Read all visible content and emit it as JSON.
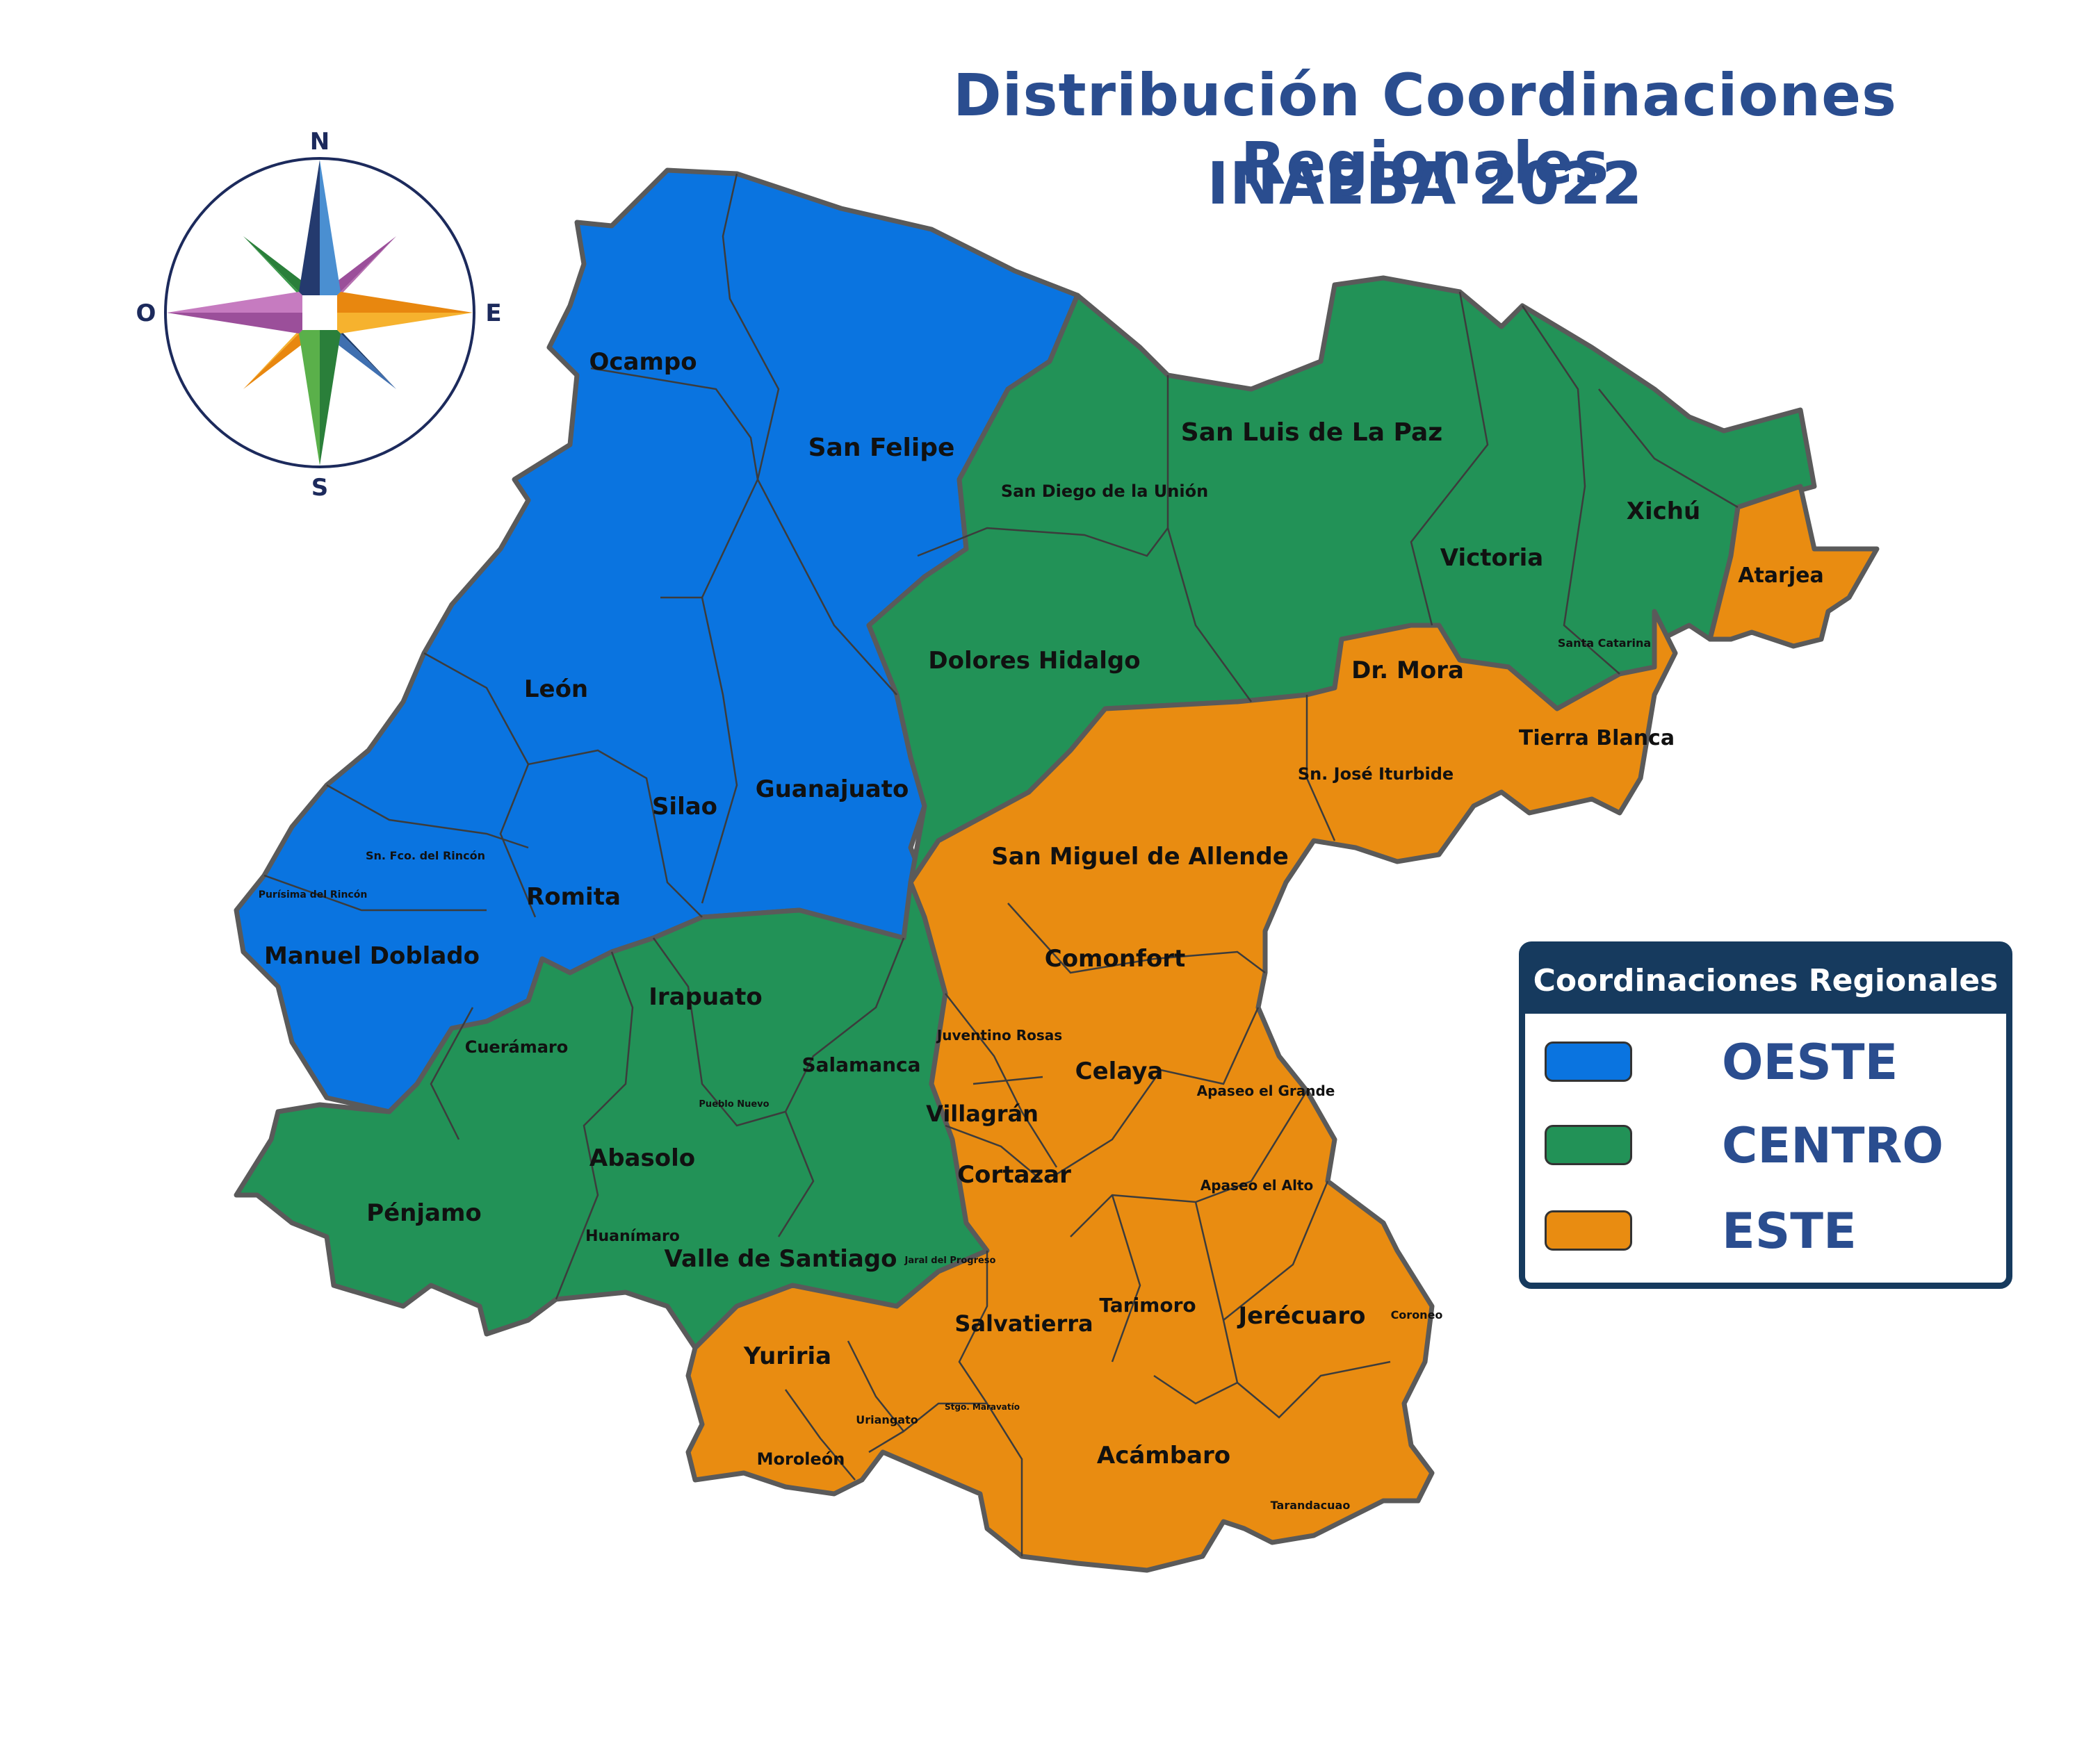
{
  "title": {
    "line1": "Distribución Coordinaciones Regionales",
    "line2": "INAEBA 2022"
  },
  "compass": {
    "n": "N",
    "s": "S",
    "e": "E",
    "w": "O",
    "icon": "compass-rose-icon"
  },
  "colors": {
    "oeste": "#0a74e0",
    "centro": "#229257",
    "este": "#e98c11",
    "border": "#5a5a5a"
  },
  "legend": {
    "title": "Coordinaciones Regionales",
    "items": [
      {
        "label": "OESTE",
        "color": "#0a74e0"
      },
      {
        "label": "CENTRO",
        "color": "#229257"
      },
      {
        "label": "ESTE",
        "color": "#e98c11"
      }
    ]
  },
  "regions": {
    "oeste": [
      {
        "name": "Ocampo"
      },
      {
        "name": "San Felipe"
      },
      {
        "name": "León"
      },
      {
        "name": "Silao"
      },
      {
        "name": "Guanajuato"
      },
      {
        "name": "Sn. Fco. del Rincón"
      },
      {
        "name": "Purísima del Rincón"
      },
      {
        "name": "Romita"
      },
      {
        "name": "Manuel Doblado"
      }
    ],
    "centro": [
      {
        "name": "San Luis de La Paz"
      },
      {
        "name": "San Diego de la Unión"
      },
      {
        "name": "Xichú"
      },
      {
        "name": "Victoria"
      },
      {
        "name": "Dolores Hidalgo"
      },
      {
        "name": "Irapuato"
      },
      {
        "name": "Cuerámaro"
      },
      {
        "name": "Salamanca"
      },
      {
        "name": "Pueblo Nuevo"
      },
      {
        "name": "Abasolo"
      },
      {
        "name": "Pénjamo"
      },
      {
        "name": "Huanímaro"
      },
      {
        "name": "Valle de Santiago"
      },
      {
        "name": "Jaral del Progreso"
      }
    ],
    "este": [
      {
        "name": "Atarjea"
      },
      {
        "name": "Santa Catarina"
      },
      {
        "name": "Dr. Mora"
      },
      {
        "name": "Tierra Blanca"
      },
      {
        "name": "Sn. José Iturbide"
      },
      {
        "name": "San Miguel de Allende"
      },
      {
        "name": "Comonfort"
      },
      {
        "name": "Juventino Rosas"
      },
      {
        "name": "Celaya"
      },
      {
        "name": "Apaseo el Grande"
      },
      {
        "name": "Villagrán"
      },
      {
        "name": "Cortazar"
      },
      {
        "name": "Apaseo el Alto"
      },
      {
        "name": "Salvatierra"
      },
      {
        "name": "Tarimoro"
      },
      {
        "name": "Jerécuaro"
      },
      {
        "name": "Coroneo"
      },
      {
        "name": "Yuriria"
      },
      {
        "name": "Uriangato"
      },
      {
        "name": "Stgo. Maravatío"
      },
      {
        "name": "Moroleón"
      },
      {
        "name": "Acámbaro"
      },
      {
        "name": "Tarandacuao"
      }
    ]
  }
}
